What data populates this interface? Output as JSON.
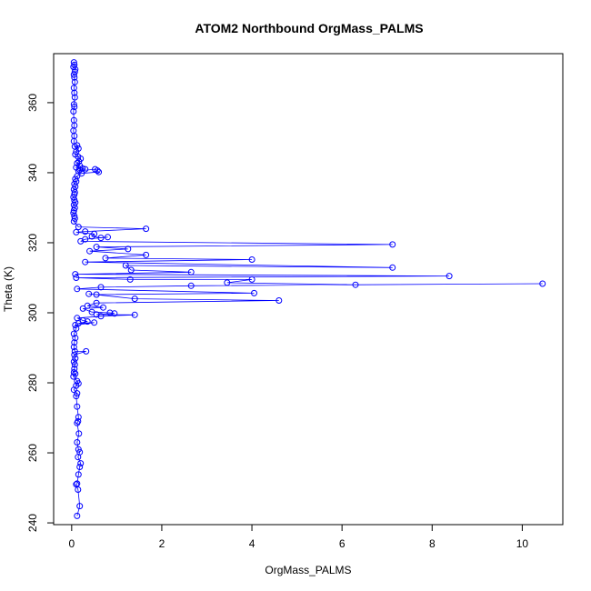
{
  "chart_data": {
    "type": "scatter",
    "title": "ATOM2 Northbound OrgMass_PALMS",
    "xlabel": "OrgMass_PALMS",
    "ylabel": "Theta (K)",
    "xlim": [
      -0.4,
      10.9
    ],
    "ylim": [
      239.5,
      374.0
    ],
    "xticks": [
      0,
      2,
      4,
      6,
      8,
      10
    ],
    "yticks": [
      240,
      260,
      280,
      300,
      320,
      340,
      360
    ],
    "grid": false,
    "legend": "none",
    "marker": "open-circle",
    "connected": true,
    "series": [
      {
        "color": "#0000ff",
        "points": [
          [
            0.05,
            371.5
          ],
          [
            0.06,
            370.8
          ],
          [
            0.04,
            370.2
          ],
          [
            0.08,
            369.5
          ],
          [
            0.07,
            368.8
          ],
          [
            0.05,
            368.0
          ],
          [
            0.06,
            367.2
          ],
          [
            0.07,
            365.9
          ],
          [
            0.05,
            364.2
          ],
          [
            0.06,
            362.8
          ],
          [
            0.07,
            361.5
          ],
          [
            0.05,
            359.5
          ],
          [
            0.06,
            358.8
          ],
          [
            0.04,
            357.5
          ],
          [
            0.05,
            355.0
          ],
          [
            0.06,
            353.5
          ],
          [
            0.04,
            352.0
          ],
          [
            0.06,
            350.5
          ],
          [
            0.05,
            349.0
          ],
          [
            0.07,
            347.5
          ],
          [
            0.12,
            347.8
          ],
          [
            0.15,
            346.9
          ],
          [
            0.1,
            346.0
          ],
          [
            0.08,
            345.2
          ],
          [
            0.14,
            344.6
          ],
          [
            0.2,
            344.0
          ],
          [
            0.16,
            343.2
          ],
          [
            0.12,
            342.7
          ],
          [
            0.18,
            342.0
          ],
          [
            0.1,
            341.5
          ],
          [
            0.24,
            341.2
          ],
          [
            0.3,
            341.0
          ],
          [
            0.18,
            340.8
          ],
          [
            0.15,
            340.5
          ],
          [
            0.52,
            341.0
          ],
          [
            0.57,
            340.6
          ],
          [
            0.6,
            340.2
          ],
          [
            0.22,
            339.8
          ],
          [
            0.12,
            339.0
          ],
          [
            0.08,
            338.2
          ],
          [
            0.1,
            337.5
          ],
          [
            0.06,
            336.8
          ],
          [
            0.08,
            336.0
          ],
          [
            0.05,
            335.2
          ],
          [
            0.07,
            334.4
          ],
          [
            0.06,
            333.8
          ],
          [
            0.04,
            333.0
          ],
          [
            0.06,
            332.2
          ],
          [
            0.08,
            331.5
          ],
          [
            0.05,
            330.8
          ],
          [
            0.07,
            330.0
          ],
          [
            0.05,
            329.2
          ],
          [
            0.04,
            328.5
          ],
          [
            0.06,
            327.6
          ],
          [
            0.07,
            326.9
          ],
          [
            0.05,
            326.1
          ],
          [
            0.15,
            324.5
          ],
          [
            1.65,
            324.0
          ],
          [
            0.3,
            323.2
          ],
          [
            0.1,
            323.0
          ],
          [
            0.5,
            322.5
          ],
          [
            0.45,
            321.8
          ],
          [
            0.65,
            321.4
          ],
          [
            0.8,
            321.6
          ],
          [
            0.3,
            321.0
          ],
          [
            0.2,
            320.4
          ],
          [
            7.12,
            319.5
          ],
          [
            0.55,
            318.8
          ],
          [
            1.25,
            318.2
          ],
          [
            0.4,
            317.6
          ],
          [
            1.65,
            316.5
          ],
          [
            0.75,
            315.6
          ],
          [
            4.0,
            315.2
          ],
          [
            0.3,
            314.5
          ],
          [
            7.12,
            312.9
          ],
          [
            1.2,
            313.5
          ],
          [
            1.32,
            312.2
          ],
          [
            2.65,
            311.6
          ],
          [
            0.08,
            311.0
          ],
          [
            8.38,
            310.5
          ],
          [
            0.1,
            310.0
          ],
          [
            1.3,
            309.5
          ],
          [
            4.0,
            309.5
          ],
          [
            3.45,
            308.6
          ],
          [
            6.3,
            308.0
          ],
          [
            10.45,
            308.3
          ],
          [
            2.65,
            307.7
          ],
          [
            0.65,
            307.3
          ],
          [
            0.12,
            306.8
          ],
          [
            4.05,
            305.6
          ],
          [
            0.55,
            305.2
          ],
          [
            0.38,
            305.4
          ],
          [
            1.4,
            304.0
          ],
          [
            4.6,
            303.5
          ],
          [
            0.55,
            302.8
          ],
          [
            0.35,
            302.0
          ],
          [
            0.7,
            301.5
          ],
          [
            0.25,
            301.2
          ],
          [
            0.45,
            300.2
          ],
          [
            0.85,
            300.0
          ],
          [
            0.95,
            299.8
          ],
          [
            0.55,
            299.5
          ],
          [
            1.4,
            299.4
          ],
          [
            0.65,
            299.0
          ],
          [
            0.12,
            298.5
          ],
          [
            0.25,
            297.8
          ],
          [
            0.35,
            297.5
          ],
          [
            0.15,
            297.0
          ],
          [
            0.5,
            297.2
          ],
          [
            0.08,
            296.5
          ],
          [
            0.1,
            295.5
          ],
          [
            0.05,
            294.0
          ],
          [
            0.08,
            292.8
          ],
          [
            0.06,
            291.5
          ],
          [
            0.05,
            290.2
          ],
          [
            0.07,
            289.0
          ],
          [
            0.32,
            289.0
          ],
          [
            0.06,
            288.0
          ],
          [
            0.08,
            287.0
          ],
          [
            0.05,
            286.0
          ],
          [
            0.07,
            285.2
          ],
          [
            0.06,
            284.0
          ],
          [
            0.05,
            283.0
          ],
          [
            0.08,
            282.6
          ],
          [
            0.04,
            281.8
          ],
          [
            0.12,
            280.5
          ],
          [
            0.15,
            279.8
          ],
          [
            0.1,
            279.2
          ],
          [
            0.05,
            278.0
          ],
          [
            0.12,
            277.0
          ],
          [
            0.1,
            276.2
          ],
          [
            0.12,
            273.2
          ],
          [
            0.15,
            270.2
          ],
          [
            0.14,
            269.0
          ],
          [
            0.12,
            268.5
          ],
          [
            0.16,
            265.5
          ],
          [
            0.12,
            263.0
          ],
          [
            0.15,
            261.0
          ],
          [
            0.18,
            260.2
          ],
          [
            0.14,
            258.8
          ],
          [
            0.2,
            257.0
          ],
          [
            0.18,
            256.0
          ],
          [
            0.15,
            253.8
          ],
          [
            0.12,
            251.2
          ],
          [
            0.1,
            251.0
          ],
          [
            0.14,
            249.5
          ],
          [
            0.18,
            244.8
          ],
          [
            0.12,
            242.0
          ]
        ]
      }
    ]
  }
}
